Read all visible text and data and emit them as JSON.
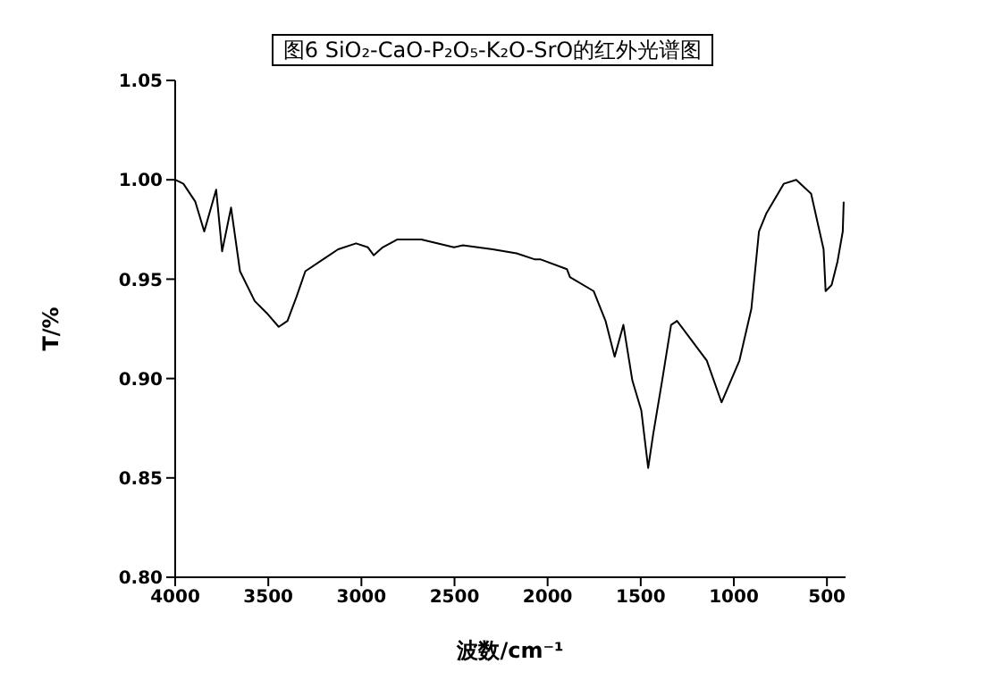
{
  "chart_data": {
    "type": "line",
    "title": "图6 SiO₂-CaO-P₂O₅-K₂O-SrO的红外光谱图",
    "xlabel": "波数/cm⁻¹",
    "ylabel": "T/%",
    "xlim": [
      4000,
      400
    ],
    "xticks": [
      4000,
      3500,
      3000,
      2500,
      2000,
      1500,
      1000,
      500
    ],
    "ylim": [
      0.8,
      1.05
    ],
    "yticks": [
      {
        "value": 0.8,
        "label": "0.80"
      },
      {
        "value": 0.85,
        "label": "0.85"
      },
      {
        "value": 0.9,
        "label": "0.90"
      },
      {
        "value": 0.95,
        "label": "0.95"
      },
      {
        "value": 1.0,
        "label": "1.00"
      },
      {
        "value": 1.05,
        "label": "1.05"
      }
    ],
    "grid": false,
    "marker": "none",
    "line_style": "solid",
    "series": [
      {
        "color": "#000000",
        "x": [
          4000,
          3956,
          3892,
          3844,
          3780,
          3748,
          3700,
          3652,
          3573,
          3509,
          3444,
          3397,
          3349,
          3301,
          3205,
          3125,
          3029,
          2965,
          2934,
          2886,
          2806,
          2678,
          2503,
          2455,
          2295,
          2167,
          2071,
          2040,
          1896,
          1880,
          1753,
          1689,
          1640,
          1593,
          1545,
          1497,
          1460,
          1433,
          1385,
          1337,
          1305,
          1241,
          1145,
          1066,
          970,
          906,
          865,
          826,
          732,
          665,
          585,
          518,
          507,
          475,
          443,
          415,
          410
        ],
        "values": [
          1.0,
          0.998,
          0.989,
          0.974,
          0.995,
          0.964,
          0.986,
          0.954,
          0.939,
          0.933,
          0.926,
          0.929,
          0.941,
          0.954,
          0.96,
          0.965,
          0.968,
          0.966,
          0.962,
          0.966,
          0.97,
          0.97,
          0.966,
          0.967,
          0.965,
          0.963,
          0.96,
          0.96,
          0.955,
          0.951,
          0.944,
          0.929,
          0.911,
          0.927,
          0.899,
          0.884,
          0.855,
          0.872,
          0.899,
          0.927,
          0.929,
          0.921,
          0.909,
          0.888,
          0.909,
          0.935,
          0.974,
          0.983,
          0.998,
          1.0,
          0.993,
          0.965,
          0.944,
          0.947,
          0.959,
          0.974,
          0.989
        ]
      }
    ]
  }
}
